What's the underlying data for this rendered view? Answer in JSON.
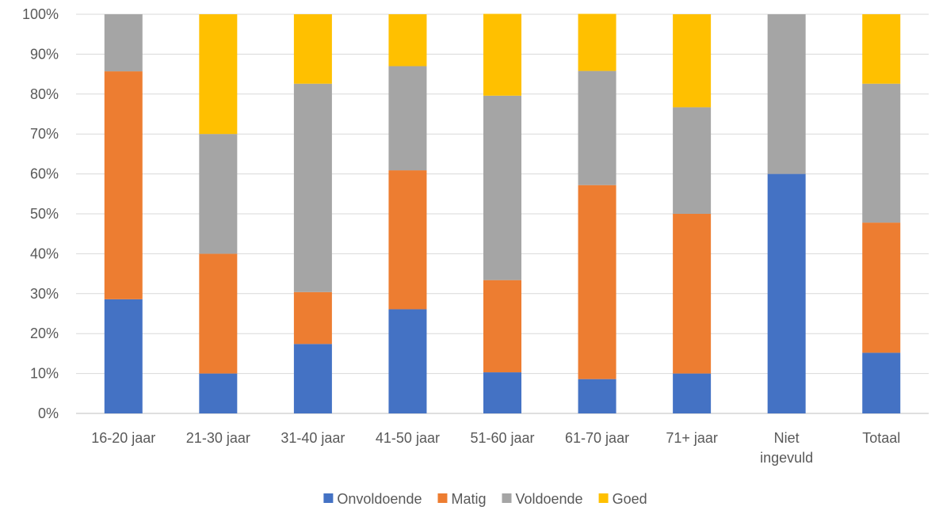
{
  "chart_data": {
    "type": "bar",
    "stacked": true,
    "percent_scale": true,
    "categories": [
      "16-20 jaar",
      "21-30 jaar",
      "31-40 jaar",
      "41-50 jaar",
      "51-60 jaar",
      "61-70 jaar",
      "71+ jaar",
      "Niet ingevuld",
      "Totaal"
    ],
    "series": [
      {
        "name": "Onvoldoende",
        "color": "#4472C4",
        "values": [
          28.6,
          10.0,
          17.4,
          26.1,
          10.3,
          8.6,
          10.0,
          60.0,
          15.2
        ]
      },
      {
        "name": "Matig",
        "color": "#ED7D31",
        "values": [
          57.1,
          30.0,
          13.0,
          34.8,
          23.1,
          48.6,
          40.0,
          0.0,
          32.6
        ]
      },
      {
        "name": "Voldoende",
        "color": "#A5A5A5",
        "values": [
          14.3,
          30.0,
          52.2,
          26.1,
          46.2,
          28.6,
          26.7,
          40.0,
          34.8
        ]
      },
      {
        "name": "Goed",
        "color": "#FFC000",
        "values": [
          0.0,
          30.0,
          17.4,
          13.0,
          20.5,
          14.3,
          23.3,
          0.0,
          17.4
        ]
      }
    ],
    "y_ticks": [
      "0%",
      "10%",
      "20%",
      "30%",
      "40%",
      "50%",
      "60%",
      "70%",
      "80%",
      "90%",
      "100%"
    ],
    "ylim": [
      0,
      100
    ],
    "grid": true,
    "legend_position": "bottom",
    "title": "",
    "xlabel": "",
    "ylabel": ""
  }
}
